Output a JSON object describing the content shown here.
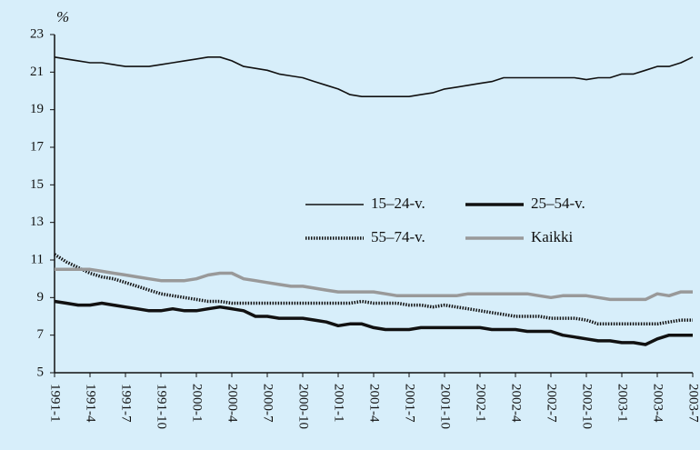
{
  "chart_data": {
    "type": "line",
    "y_unit_label": "%",
    "categories": [
      "1991-1",
      null,
      null,
      "1991-4",
      null,
      null,
      "1991-7",
      null,
      null,
      "1991-10",
      null,
      null,
      "2000-1",
      null,
      null,
      "2000-4",
      null,
      null,
      "2000-7",
      null,
      null,
      "2000-10",
      null,
      null,
      "2001-1",
      null,
      null,
      "2001-4",
      null,
      null,
      "2001-7",
      null,
      null,
      "2001-10",
      null,
      null,
      "2002-1",
      null,
      null,
      "2002-4",
      null,
      null,
      "2002-7",
      null,
      null,
      "2002-10",
      null,
      null,
      "2003-1",
      null,
      null,
      "2003-4",
      null,
      null,
      "2003-7"
    ],
    "series": [
      {
        "name": "15–24-v.",
        "color": "#111111",
        "style": "thin",
        "values": [
          21.8,
          21.7,
          21.6,
          21.5,
          21.5,
          21.4,
          21.3,
          21.3,
          21.3,
          21.4,
          21.5,
          21.6,
          21.7,
          21.8,
          21.8,
          21.6,
          21.3,
          21.2,
          21.1,
          20.9,
          20.8,
          20.7,
          20.5,
          20.3,
          20.1,
          19.8,
          19.7,
          19.7,
          19.7,
          19.7,
          19.7,
          19.8,
          19.9,
          20.1,
          20.2,
          20.3,
          20.4,
          20.5,
          20.7,
          20.7,
          20.7,
          20.7,
          20.7,
          20.7,
          20.7,
          20.6,
          20.7,
          20.7,
          20.9,
          20.9,
          21.1,
          21.3,
          21.3,
          21.5,
          21.8
        ]
      },
      {
        "name": "25–54-v.",
        "color": "#111111",
        "style": "thick",
        "values": [
          8.8,
          8.7,
          8.6,
          8.6,
          8.7,
          8.6,
          8.5,
          8.4,
          8.3,
          8.3,
          8.4,
          8.3,
          8.3,
          8.4,
          8.5,
          8.4,
          8.3,
          8.0,
          8.0,
          7.9,
          7.9,
          7.9,
          7.8,
          7.7,
          7.5,
          7.6,
          7.6,
          7.4,
          7.3,
          7.3,
          7.3,
          7.4,
          7.4,
          7.4,
          7.4,
          7.4,
          7.4,
          7.3,
          7.3,
          7.3,
          7.2,
          7.2,
          7.2,
          7.0,
          6.9,
          6.8,
          6.7,
          6.7,
          6.6,
          6.6,
          6.5,
          6.8,
          7.0,
          7.0,
          7.0
        ]
      },
      {
        "name": "55–74-v.",
        "color": "#111111",
        "style": "dotted",
        "values": [
          11.3,
          10.9,
          10.6,
          10.3,
          10.1,
          10.0,
          9.8,
          9.6,
          9.4,
          9.2,
          9.1,
          9.0,
          8.9,
          8.8,
          8.8,
          8.7,
          8.7,
          8.7,
          8.7,
          8.7,
          8.7,
          8.7,
          8.7,
          8.7,
          8.7,
          8.7,
          8.8,
          8.7,
          8.7,
          8.7,
          8.6,
          8.6,
          8.5,
          8.6,
          8.5,
          8.4,
          8.3,
          8.2,
          8.1,
          8.0,
          8.0,
          8.0,
          7.9,
          7.9,
          7.9,
          7.8,
          7.6,
          7.6,
          7.6,
          7.6,
          7.6,
          7.6,
          7.7,
          7.8,
          7.8
        ]
      },
      {
        "name": "Kaikki",
        "color": "#999999",
        "style": "thick",
        "values": [
          10.5,
          10.5,
          10.5,
          10.5,
          10.4,
          10.3,
          10.2,
          10.1,
          10.0,
          9.9,
          9.9,
          9.9,
          10.0,
          10.2,
          10.3,
          10.3,
          10.0,
          9.9,
          9.8,
          9.7,
          9.6,
          9.6,
          9.5,
          9.4,
          9.3,
          9.3,
          9.3,
          9.3,
          9.2,
          9.1,
          9.1,
          9.1,
          9.1,
          9.1,
          9.1,
          9.2,
          9.2,
          9.2,
          9.2,
          9.2,
          9.2,
          9.1,
          9.0,
          9.1,
          9.1,
          9.1,
          9.0,
          8.9,
          8.9,
          8.9,
          8.9,
          9.2,
          9.1,
          9.3,
          9.3
        ]
      }
    ],
    "ylim": [
      5,
      23
    ],
    "yticks": [
      5,
      7,
      9,
      11,
      13,
      15,
      17,
      19,
      21,
      23
    ],
    "grid": false,
    "legend": "inside"
  }
}
